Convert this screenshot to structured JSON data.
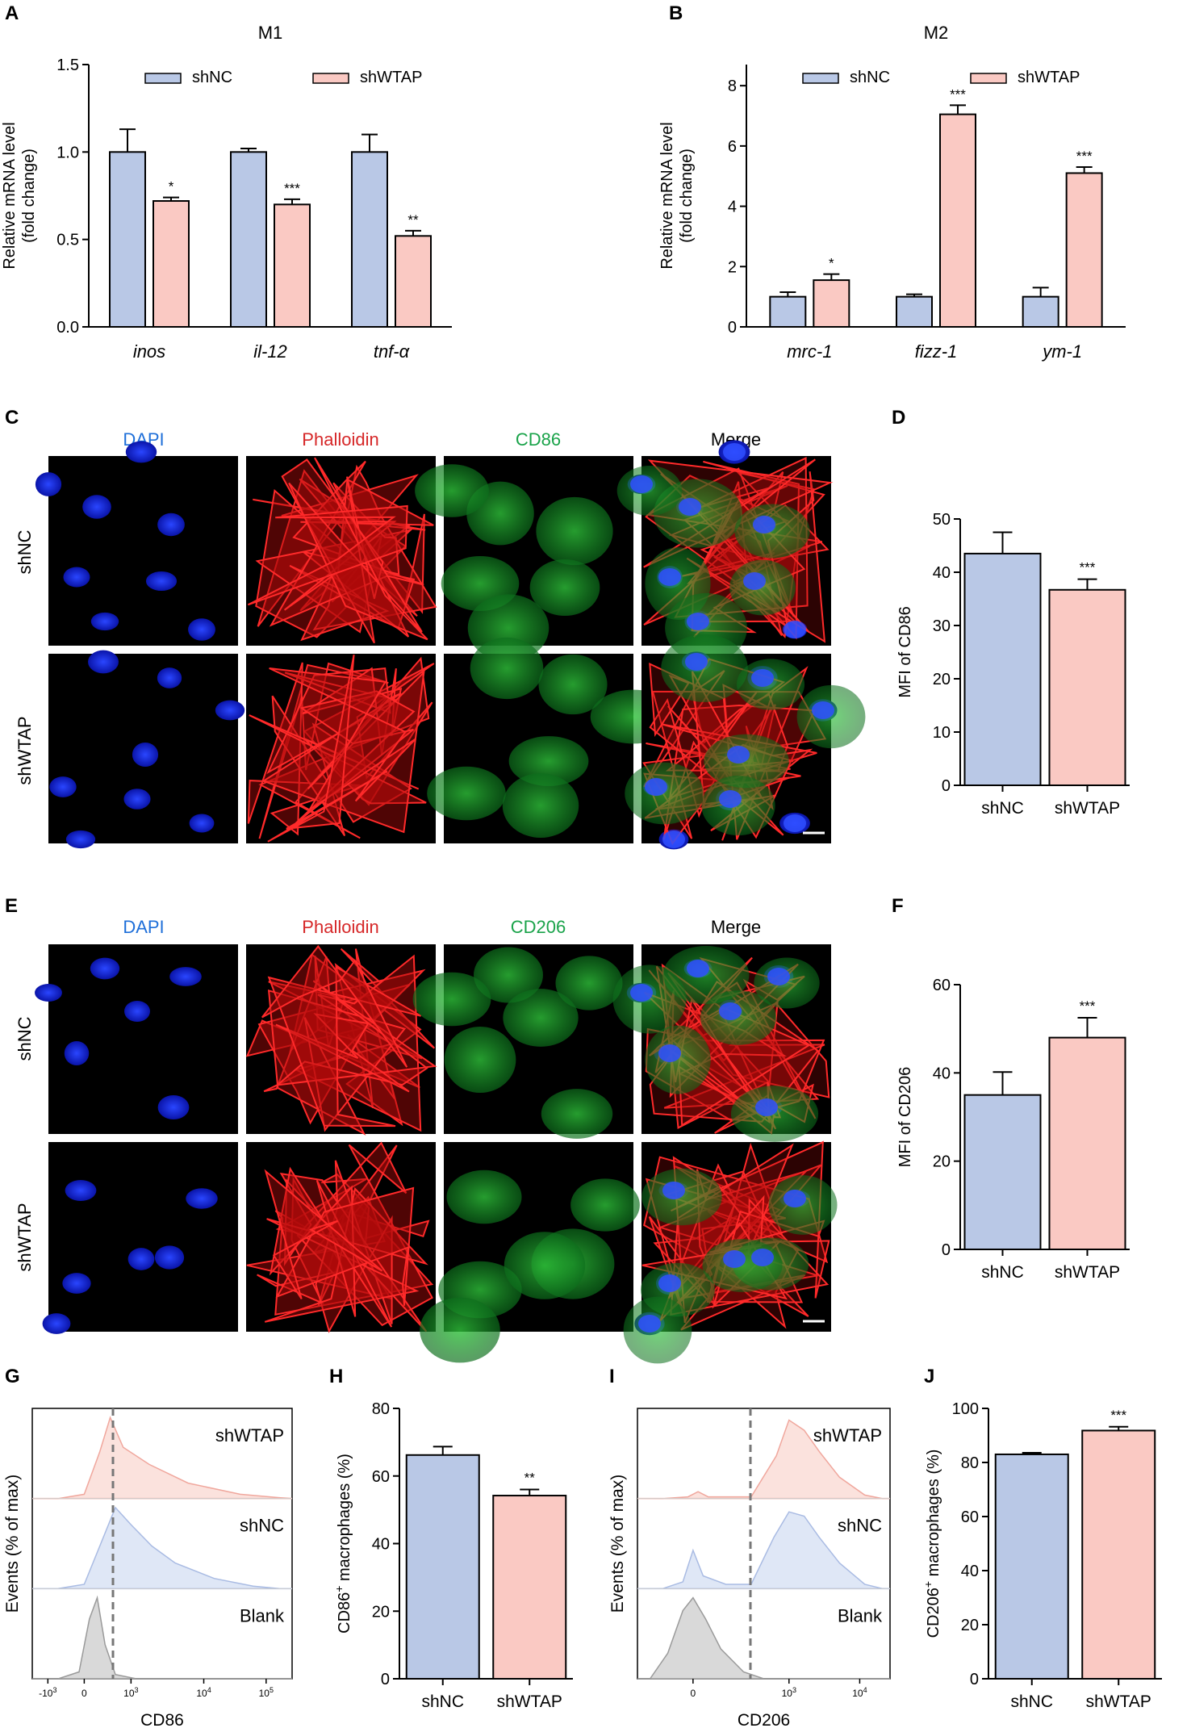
{
  "colors": {
    "shNC": "#b9c8e6",
    "shWTAP": "#fac9c3",
    "hist_shNC": "#dfe7f6",
    "hist_shWTAP": "#fbe2dd",
    "hist_blank": "#d9d9d9",
    "dapi_label": "#1e6fd9",
    "phalloidin_label": "#d62728",
    "green_label": "#1aa34a",
    "micro_bg": "#000000"
  },
  "panels": {
    "A": "A",
    "B": "B",
    "C": "C",
    "D": "D",
    "E": "E",
    "F": "F",
    "G": "G",
    "H": "H",
    "I": "I",
    "J": "J"
  },
  "chart_data": [
    {
      "panel": "A",
      "type": "bar",
      "title": "M1",
      "ylabel_line1": "Relative mRNA level",
      "ylabel_line2": "(fold change)",
      "categories": [
        "inos",
        "il-12",
        "tnf-α"
      ],
      "series": [
        {
          "name": "shNC",
          "values": [
            1.0,
            1.0,
            1.0
          ],
          "err": [
            0.13,
            0.02,
            0.1
          ]
        },
        {
          "name": "shWTAP",
          "values": [
            0.72,
            0.7,
            0.52
          ],
          "err": [
            0.02,
            0.03,
            0.03
          ]
        }
      ],
      "significance": [
        "*",
        "***",
        "**"
      ],
      "ylim": [
        0,
        1.5
      ],
      "yticks": [
        "0.0",
        "0.5",
        "1.0",
        "1.5"
      ],
      "legend": "top"
    },
    {
      "panel": "B",
      "type": "bar",
      "title": "M2",
      "ylabel_line1": "Relative mRNA level",
      "ylabel_line2": "(fold change)",
      "categories": [
        "mrc-1",
        "fizz-1",
        "ym-1"
      ],
      "series": [
        {
          "name": "shNC",
          "values": [
            1.0,
            1.0,
            1.0
          ],
          "err": [
            0.15,
            0.08,
            0.3
          ]
        },
        {
          "name": "shWTAP",
          "values": [
            1.55,
            7.05,
            5.1
          ],
          "err": [
            0.2,
            0.3,
            0.2
          ]
        }
      ],
      "significance": [
        "*",
        "***",
        "***"
      ],
      "ylim": [
        0,
        8.7
      ],
      "yticks": [
        "0",
        "2",
        "4",
        "6",
        "8"
      ],
      "legend": "top"
    },
    {
      "panel": "D",
      "type": "bar",
      "ylabel": "MFI of CD86",
      "categories": [
        "shNC",
        "shWTAP"
      ],
      "values": [
        43.5,
        36.7
      ],
      "err": [
        4.0,
        2.0
      ],
      "significance": [
        "",
        "***"
      ],
      "ylim": [
        0,
        50
      ],
      "yticks": [
        "0",
        "10",
        "20",
        "30",
        "40",
        "50"
      ]
    },
    {
      "panel": "F",
      "type": "bar",
      "ylabel": "MFI of CD206",
      "categories": [
        "shNC",
        "shWTAP"
      ],
      "values": [
        35.0,
        48.0
      ],
      "err": [
        5.2,
        4.5
      ],
      "significance": [
        "",
        "***"
      ],
      "ylim": [
        0,
        60
      ],
      "yticks": [
        "0",
        "20",
        "40",
        "60"
      ]
    },
    {
      "panel": "H",
      "type": "bar",
      "ylabel_pre": "CD86",
      "ylabel_sup": "+",
      "ylabel_post": " macrophages (%)",
      "categories": [
        "shNC",
        "shWTAP"
      ],
      "values": [
        66.2,
        54.2
      ],
      "err": [
        2.5,
        1.8
      ],
      "significance": [
        "",
        "**"
      ],
      "ylim": [
        0,
        80
      ],
      "yticks": [
        "0",
        "20",
        "40",
        "60",
        "80"
      ]
    },
    {
      "panel": "J",
      "type": "bar",
      "ylabel_pre": "CD206",
      "ylabel_sup": "+",
      "ylabel_post": " macrophages (%)",
      "categories": [
        "shNC",
        "shWTAP"
      ],
      "values": [
        83.0,
        91.8
      ],
      "err": [
        0.6,
        1.4
      ],
      "significance": [
        "",
        "***"
      ],
      "ylim": [
        0,
        100
      ],
      "yticks": [
        "0",
        "20",
        "40",
        "60",
        "80",
        "100"
      ]
    },
    {
      "panel": "G",
      "type": "histogram",
      "xlabel": "CD86",
      "ylabel": "Events (% of max)",
      "rows": [
        "shWTAP",
        "shNC",
        "Blank"
      ],
      "xticks": [
        "-10",
        "0",
        "10",
        "10",
        "10"
      ],
      "xtick_sup": [
        "3",
        "",
        "3",
        "4",
        "5"
      ]
    },
    {
      "panel": "I",
      "type": "histogram",
      "xlabel": "CD206",
      "ylabel": "Events (% of max)",
      "rows": [
        "shWTAP",
        "shNC",
        "Blank"
      ],
      "xticks": [
        "0",
        "10",
        "10"
      ],
      "xtick_sup": [
        "",
        "3",
        "4"
      ]
    }
  ],
  "microscopy": {
    "C": {
      "columns": [
        "DAPI",
        "Phalloidin",
        "CD86",
        "Merge"
      ],
      "rows": [
        "shNC",
        "shWTAP"
      ]
    },
    "E": {
      "columns": [
        "DAPI",
        "Phalloidin",
        "CD206",
        "Merge"
      ],
      "rows": [
        "shNC",
        "shWTAP"
      ]
    }
  }
}
